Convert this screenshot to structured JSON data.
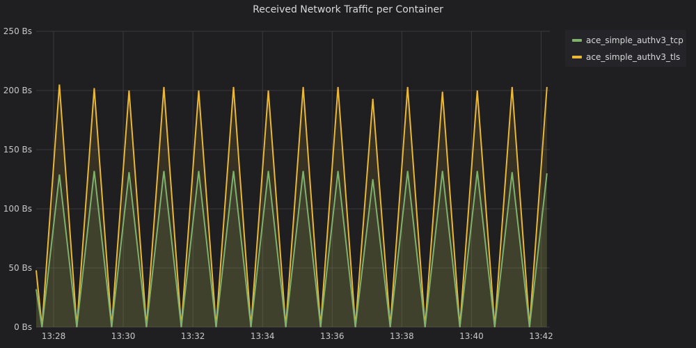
{
  "panel": {
    "title": "Received Network Traffic per Container"
  },
  "colors": {
    "background": "#1f1f22",
    "grid": "#3a3a3e",
    "axis_text": "#c7c7cc",
    "fill": "#5c5a3a"
  },
  "chart_data": {
    "type": "line",
    "title": "Received Network Traffic per Container",
    "xlabel": "",
    "ylabel": "",
    "ylim": [
      0,
      250
    ],
    "xlim": [
      "13:27:30",
      "13:42:15"
    ],
    "yticks": [
      {
        "value": 0,
        "label": "0 Bs"
      },
      {
        "value": 50,
        "label": "50 Bs"
      },
      {
        "value": 100,
        "label": "100 Bs"
      },
      {
        "value": 150,
        "label": "150 Bs"
      },
      {
        "value": 200,
        "label": "200 Bs"
      },
      {
        "value": 250,
        "label": "250 Bs"
      }
    ],
    "xticks": [
      "13:28",
      "13:30",
      "13:32",
      "13:34",
      "13:36",
      "13:38",
      "13:40",
      "13:42"
    ],
    "grid": true,
    "legend_position": "right-top",
    "x": [
      "13:27:30",
      "13:27:40",
      "13:28:10",
      "13:28:40",
      "13:29:10",
      "13:29:40",
      "13:30:10",
      "13:30:40",
      "13:31:10",
      "13:31:40",
      "13:32:10",
      "13:32:40",
      "13:33:10",
      "13:33:40",
      "13:34:10",
      "13:34:40",
      "13:35:10",
      "13:35:40",
      "13:36:10",
      "13:36:40",
      "13:37:10",
      "13:37:40",
      "13:38:10",
      "13:38:40",
      "13:39:10",
      "13:39:40",
      "13:40:10",
      "13:40:40",
      "13:41:10",
      "13:41:40",
      "13:42:10"
    ],
    "series": [
      {
        "name": "ace_simple_authv3_tcp",
        "color": "#7eb26d",
        "values": [
          32,
          0,
          129,
          0,
          132,
          0,
          131,
          0,
          132,
          0,
          132,
          0,
          132,
          0,
          132,
          0,
          132,
          0,
          132,
          0,
          125,
          0,
          132,
          0,
          132,
          0,
          132,
          0,
          131,
          0,
          130
        ]
      },
      {
        "name": "ace_simple_authv3_tls",
        "color": "#eab839",
        "values": [
          48,
          0,
          205,
          0,
          202,
          0,
          200,
          0,
          203,
          0,
          200,
          0,
          203,
          0,
          200,
          0,
          203,
          0,
          203,
          0,
          193,
          0,
          203,
          0,
          199,
          0,
          200,
          0,
          203,
          0,
          203
        ]
      }
    ]
  }
}
